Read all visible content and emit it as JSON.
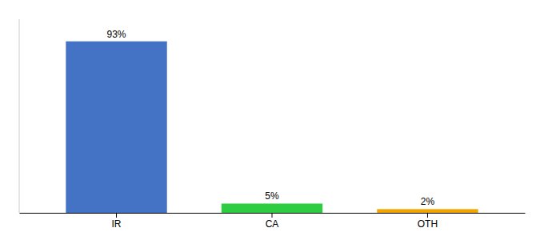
{
  "chart_data": {
    "type": "bar",
    "categories": [
      "IR",
      "CA",
      "OTH"
    ],
    "values": [
      93,
      5,
      2
    ],
    "value_labels": [
      "93%",
      "5%",
      "2%"
    ],
    "colors": [
      "#4472c4",
      "#2ecc40",
      "#f0a500"
    ],
    "ylim": [
      0,
      105
    ],
    "data_labels": true,
    "tick_labels": "x"
  }
}
